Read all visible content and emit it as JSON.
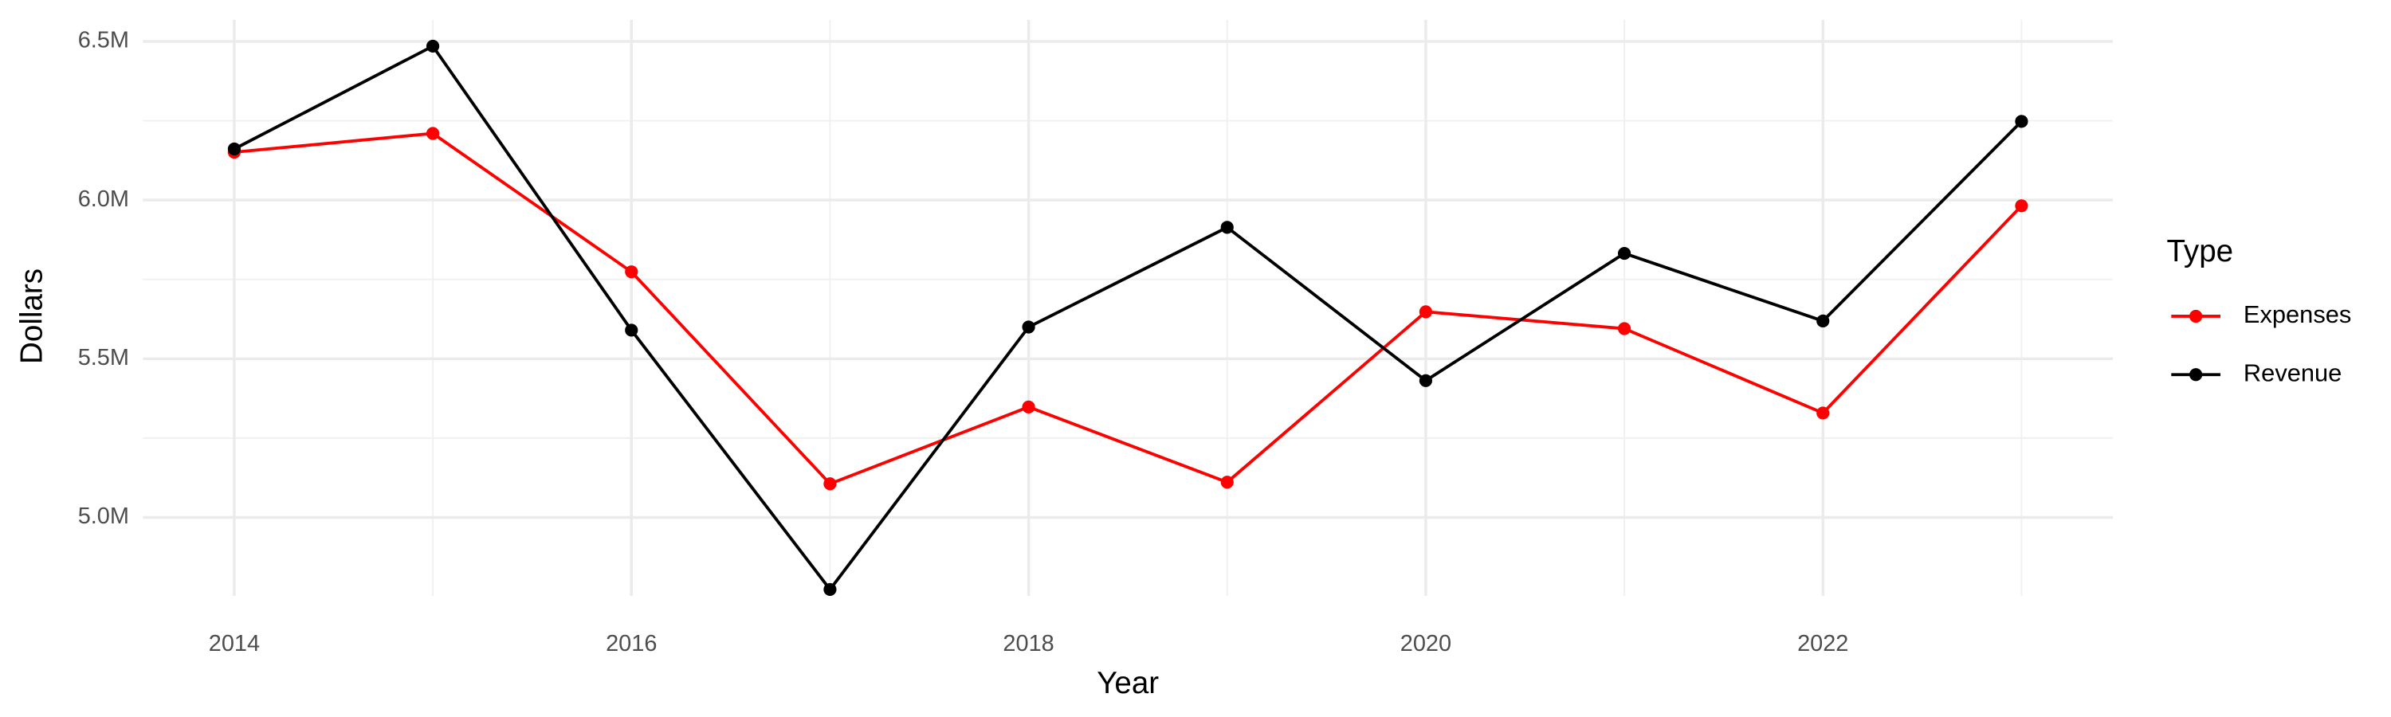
{
  "chart_data": {
    "type": "line",
    "x_label": "Year",
    "y_label": "Dollars",
    "x": [
      2014,
      2015,
      2016,
      2017,
      2018,
      2019,
      2020,
      2021,
      2022,
      2023
    ],
    "series": [
      {
        "name": "Expenses",
        "color": "#ff0000",
        "values": [
          6151000,
          6210000,
          5774000,
          5106000,
          5348000,
          5111000,
          5648000,
          5595000,
          5329000,
          5982000
        ]
      },
      {
        "name": "Revenue",
        "color": "#000000",
        "values": [
          6161000,
          6485000,
          5590000,
          4773000,
          5600000,
          5914000,
          5431000,
          5832000,
          5619000,
          6248000
        ]
      }
    ],
    "xlim": [
      2013.54,
      2023.46
    ],
    "xticks": [
      2014,
      2016,
      2018,
      2020,
      2022
    ],
    "ylim": [
      4753000,
      6568000
    ],
    "yticks": [
      {
        "value": 5000000,
        "label": "5.0M"
      },
      {
        "value": 5500000,
        "label": "5.5M"
      },
      {
        "value": 6000000,
        "label": "6.0M"
      },
      {
        "value": 6500000,
        "label": "6.5M"
      }
    ],
    "grid": true,
    "legend_title": "Type",
    "legend_position": "right"
  }
}
